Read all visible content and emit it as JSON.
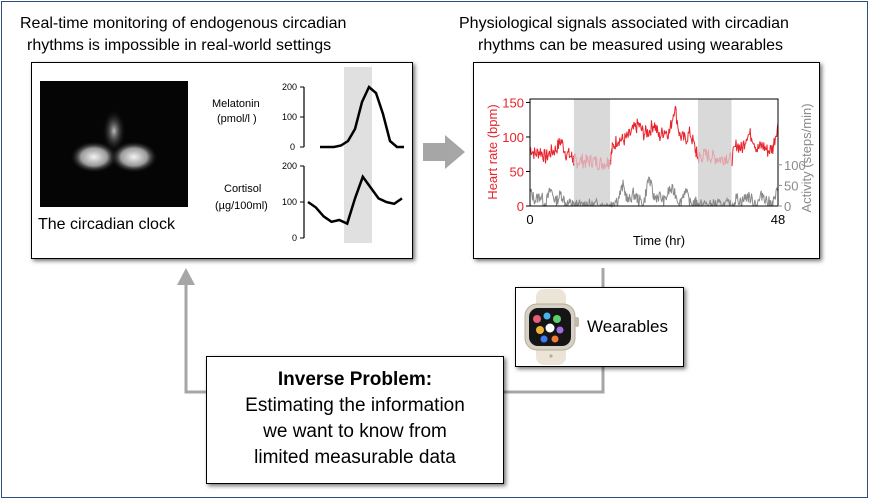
{
  "left_panel": {
    "heading_line1": "Real-time monitoring of endogenous circadian",
    "heading_line2": "rhythms is impossible in real-world settings",
    "clock_caption": "The circadian clock",
    "melatonin_label_line1": "Melatonin",
    "melatonin_label_line2": "(pmol/l )",
    "cortisol_label_line1": "Cortisol",
    "cortisol_label_line2": "(µg/100ml)",
    "melatonin_ticks": [
      "200",
      "100",
      "0"
    ],
    "cortisol_ticks": [
      "200",
      "100",
      "0"
    ]
  },
  "right_panel": {
    "heading_line1": "Physiological signals associated with circadian",
    "heading_line2": "rhythms can be measured using wearables"
  },
  "wearables": {
    "label": "Wearables"
  },
  "inverse_problem": {
    "title": "Inverse Problem:",
    "line1": "Estimating the information",
    "line2": "we want to know from",
    "line3": "limited measurable data"
  },
  "colors": {
    "heart_rate": "#e8242c",
    "heart_rate_shaded": "#e3a3ab",
    "activity": "#8a8a8a",
    "shade": "#d9d9d9",
    "arrow": "#a6a6a6",
    "border": "#2e4f7a"
  },
  "chart_data": {
    "type": "line",
    "x_label": "Time (hr)",
    "x_ticks": [
      "0",
      "48"
    ],
    "xlim": [
      0,
      48
    ],
    "y_left_label": "Heart rate (bpm)",
    "y_left_ticks": [
      "150",
      "100",
      "50",
      "0"
    ],
    "y_right_label": "Activity (steps/min)",
    "y_right_ticks": [
      "100",
      "50",
      "0"
    ],
    "shaded_intervals_hr": [
      [
        8.5,
        15.5
      ],
      [
        32.5,
        39
      ]
    ],
    "series": [
      {
        "axis": "left",
        "x": [
          0,
          1,
          2,
          3,
          4,
          5,
          6,
          7,
          8,
          8.5,
          9,
          10,
          11,
          12,
          13,
          14,
          15,
          15.5,
          16,
          17,
          18,
          19,
          20,
          21,
          22,
          23,
          24,
          25,
          26,
          27,
          28,
          29,
          30,
          31,
          32,
          32.5,
          33,
          34,
          35,
          36,
          37,
          38,
          39,
          40,
          41,
          42,
          43,
          44,
          45,
          46,
          47,
          48
        ],
        "values": [
          85,
          75,
          80,
          70,
          78,
          82,
          95,
          76,
          72,
          66,
          65,
          66,
          64,
          66,
          63,
          62,
          64,
          66,
          85,
          98,
          95,
          100,
          110,
          118,
          105,
          108,
          120,
          100,
          110,
          106,
          145,
          102,
          96,
          106,
          82,
          70,
          72,
          74,
          72,
          70,
          68,
          72,
          66,
          90,
          82,
          104,
          102,
          82,
          88,
          80,
          84,
          120
        ]
      },
      {
        "axis": "right",
        "x": [
          0,
          1,
          2,
          3,
          4,
          5,
          6,
          7,
          8,
          8.5,
          9,
          10,
          11,
          12,
          13,
          14,
          15,
          15.5,
          16,
          17,
          18,
          19,
          20,
          21,
          22,
          23,
          24,
          25,
          26,
          27,
          28,
          29,
          30,
          31,
          32,
          32.5,
          33,
          34,
          35,
          36,
          37,
          38,
          39,
          40,
          41,
          42,
          43,
          44,
          45,
          46,
          47,
          48
        ],
        "values": [
          35,
          15,
          25,
          5,
          40,
          10,
          30,
          5,
          5,
          0,
          2,
          0,
          6,
          0,
          4,
          0,
          3,
          0,
          10,
          15,
          50,
          10,
          30,
          15,
          5,
          70,
          20,
          25,
          10,
          40,
          35,
          5,
          40,
          5,
          10,
          0,
          2,
          5,
          0,
          6,
          0,
          4,
          0,
          20,
          10,
          25,
          15,
          5,
          30,
          10,
          5,
          40
        ]
      }
    ]
  },
  "melatonin_curve": {
    "x": [
      0,
      1,
      2,
      3,
      4,
      5,
      6,
      7,
      8,
      9,
      10,
      11,
      12
    ],
    "values": [
      0,
      0,
      0,
      5,
      20,
      60,
      150,
      200,
      180,
      110,
      20,
      0,
      0
    ]
  },
  "cortisol_curve": {
    "x": [
      0,
      1,
      2,
      3,
      4,
      5,
      6,
      7,
      8,
      9,
      10,
      11,
      12
    ],
    "values": [
      100,
      85,
      60,
      45,
      50,
      40,
      110,
      170,
      140,
      110,
      100,
      95,
      110
    ]
  }
}
